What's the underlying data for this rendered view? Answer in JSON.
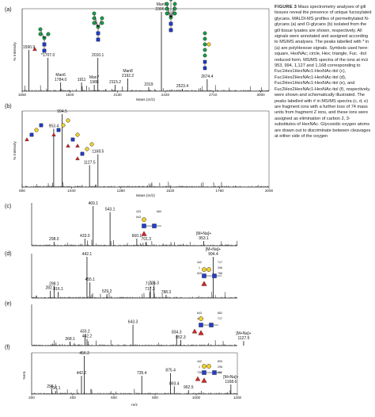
{
  "caption": {
    "label": "FIGURE 3",
    "text": "Mass spectrometry analyses of gill tissues reveal the presence of unique fucosylated glycans. MALDI-MS profiles of permethylated N-glycans (a) and O-glycans (b) isolated from the gill tissue lysates are shown, respectively. All signals were annotated and assigned according to MS/MS analyses. The peaks labelled with * in (a) are polyHexose signals. Symbols used here: square, HexNAc; circle, Hex; triangle, Fuc. -itol reduced form. MS/MS spectra of the ions at m/z 953, 994, 1,127 and 1,168 corresponding to Fuc1Hex1HexNAc1-HexNAc-itol (c), Fuc1Hex2HexNAc1-HexNAc-itol (d), Fuc2Hex1HexNAc1-HexNAc-itol (e), and Fuc2Hex2HexNAc1-HexNAc-itol (f), respectively, were shown and schematically illustrated. The peaks labelled with # in MS/MS spectra (c, d, e) are fragment ions with a further loss of 74 mass units from fragment Z ions, and these ions were assigned as elimination of carbon 2, 3- substitutes of HexNAc. Glycosidic oxygen atoms are drawn out to discriminate between cleavages at either side of the oxygen"
  },
  "colors": {
    "hexnac": "#1f3fd0",
    "hex": "#f2d22a",
    "fuc": "#d42424",
    "man": "#18a048",
    "trace": "#111111"
  },
  "chart_data": [
    {
      "panel": "(a)",
      "type": "line",
      "xlabel": "Mass (m/z)",
      "ylabel": "% Intensity",
      "xlim": [
        1550,
        3050
      ],
      "ylim": [
        0,
        100
      ],
      "xticks": [
        1550,
        1840,
        2130,
        2420,
        2710,
        3000
      ],
      "peaks": [
        {
          "x": 1590.9,
          "y": 52,
          "label": "1590.9"
        },
        {
          "x": 1707.0,
          "y": 42,
          "label": "*1707.0"
        },
        {
          "x": 1784.0,
          "y": 11,
          "label": "Man6 1784.0"
        },
        {
          "x": 1911,
          "y": 11,
          "label": "1911"
        },
        {
          "x": 1988,
          "y": 8,
          "label": "Man7 1988"
        },
        {
          "x": 2010.1,
          "y": 42,
          "label": "2010.1"
        },
        {
          "x": 2115.2,
          "y": 8,
          "label": "2115.2"
        },
        {
          "x": 2192.2,
          "y": 16,
          "label": "Man8 2192.2"
        },
        {
          "x": 2319,
          "y": 5,
          "label": "2319"
        },
        {
          "x": 2396.3,
          "y": 100,
          "label": "Man9 2396.3"
        },
        {
          "x": 2523.4,
          "y": 3,
          "label": "2523.4"
        },
        {
          "x": 2674.4,
          "y": 15,
          "label": "2674.4"
        }
      ]
    },
    {
      "panel": "(b)",
      "type": "line",
      "xlabel": "Mass (m/z)",
      "ylabel": "% Intensity",
      "xlim": [
        800,
        2000
      ],
      "ylim": [
        0,
        100
      ],
      "xticks": [
        800,
        1040,
        1280,
        1520,
        1760,
        2000
      ],
      "peaks": [
        {
          "x": 953.4,
          "y": 80,
          "label": "953.4"
        },
        {
          "x": 994.5,
          "y": 100,
          "label": "994.5"
        },
        {
          "x": 1127.5,
          "y": 30,
          "label": "1127.5"
        },
        {
          "x": 1168.5,
          "y": 45,
          "label": "1168.5"
        }
      ]
    },
    {
      "panel": "(c)",
      "type": "line",
      "xlim": [
        200,
        1100
      ],
      "ylim": [
        0,
        100
      ],
      "peaks": [
        {
          "x": 298.0,
          "y": 10,
          "label": "298.0"
        },
        {
          "x": 433.0,
          "y": 18,
          "label": "433.0"
        },
        {
          "x": 469.1,
          "y": 100,
          "label": "469.1"
        },
        {
          "x": 543.1,
          "y": 85,
          "label": "543.1"
        },
        {
          "x": 660.1,
          "y": 18,
          "label": "660.1"
        },
        {
          "x": 701.3,
          "y": 10,
          "label": "701.3"
        },
        {
          "x": 953.1,
          "y": 12,
          "label": "[M+Na]+ 953.1"
        }
      ],
      "annotations": [
        "433",
        "660",
        "543"
      ]
    },
    {
      "panel": "(d)",
      "type": "line",
      "xlim": [
        200,
        1100
      ],
      "ylim": [
        0,
        100
      ],
      "peaks": [
        {
          "x": 282.1,
          "y": 18,
          "label": "282.1"
        },
        {
          "x": 298.1,
          "y": 28,
          "label": "298.1"
        },
        {
          "x": 316.1,
          "y": 15,
          "label": "316.1"
        },
        {
          "x": 442.1,
          "y": 100,
          "label": "442.1"
        },
        {
          "x": 455.1,
          "y": 38,
          "label": "455.1"
        },
        {
          "x": 529.2,
          "y": 10,
          "label": "529.2"
        },
        {
          "x": 717.3,
          "y": 15,
          "label": "717.3"
        },
        {
          "x": 719.3,
          "y": 28,
          "label": "719.3"
        },
        {
          "x": 735.3,
          "y": 30,
          "label": "735.3"
        },
        {
          "x": 788.3,
          "y": 8,
          "label": "788.3"
        },
        {
          "x": 994.4,
          "y": 100,
          "label": "[M+Na]+ 994.4"
        }
      ],
      "annotations": [
        "442",
        "717",
        "1",
        "296",
        "529",
        "788"
      ]
    },
    {
      "panel": "(e)",
      "type": "line",
      "xlim": [
        200,
        1100
      ],
      "ylim": [
        0,
        100
      ],
      "peaks": [
        {
          "x": 368.1,
          "y": 10,
          "label": "368.1"
        },
        {
          "x": 433.2,
          "y": 30,
          "label": "433.2"
        },
        {
          "x": 442.2,
          "y": 18,
          "label": "442.2"
        },
        {
          "x": 643.3,
          "y": 55,
          "label": "643.3"
        },
        {
          "x": 834.3,
          "y": 28,
          "label": "834.3"
        },
        {
          "x": 852.3,
          "y": 15,
          "label": "852.3"
        },
        {
          "x": 1127.5,
          "y": 12,
          "label": "[M+Na]+ 1127.5"
        }
      ],
      "annotations": [
        "643",
        "852",
        "443",
        "717"
      ]
    },
    {
      "panel": "(f)",
      "type": "line",
      "xlabel": "m/z",
      "ylabel": "%Int.",
      "xlim": [
        200,
        1200
      ],
      "ylim": [
        0,
        100
      ],
      "xticks": [
        200,
        400,
        600,
        800,
        1000,
        1200
      ],
      "peaks": [
        {
          "x": 298.1,
          "y": 12,
          "label": "298.1"
        },
        {
          "x": 316.1,
          "y": 8,
          "label": "316.1"
        },
        {
          "x": 442.2,
          "y": 48,
          "label": "442.2"
        },
        {
          "x": 456.2,
          "y": 100,
          "label": "456.2"
        },
        {
          "x": 735.4,
          "y": 48,
          "label": "735.4"
        },
        {
          "x": 875.4,
          "y": 55,
          "label": "875.4"
        },
        {
          "x": 893.4,
          "y": 20,
          "label": "893.4"
        },
        {
          "x": 962.5,
          "y": 10,
          "label": "962.5"
        },
        {
          "x": 1168.6,
          "y": 25,
          "label": "[M+Na]+ 1168.6"
        }
      ],
      "annotations": [
        "442",
        "893",
        "1",
        "296",
        "735",
        "962"
      ]
    }
  ]
}
